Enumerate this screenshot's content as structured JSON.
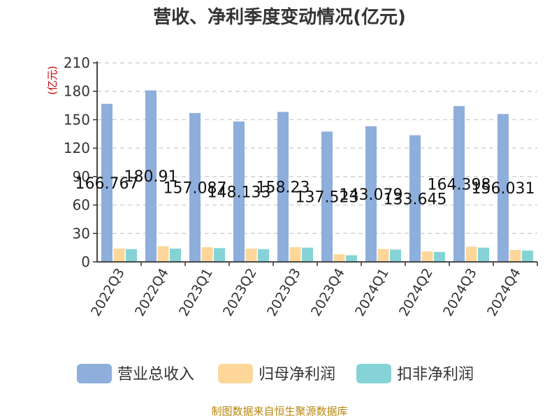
{
  "chart_data": {
    "type": "bar",
    "title": "营收、净利季度变动情况(亿元)",
    "ylabel": "(亿元)",
    "xlabel": "",
    "ylim": [
      0,
      210
    ],
    "yticks": [
      0,
      30,
      60,
      90,
      120,
      150,
      180,
      210
    ],
    "grid": true,
    "legend_position": "bottom",
    "categories": [
      "2022Q3",
      "2022Q4",
      "2023Q1",
      "2023Q2",
      "2023Q3",
      "2023Q4",
      "2024Q1",
      "2024Q2",
      "2024Q3",
      "2024Q4"
    ],
    "series": [
      {
        "name": "营业总收入",
        "color": "#8eaedb",
        "values": [
          166.767,
          180.91,
          157.087,
          148.133,
          158.23,
          137.523,
          143.079,
          133.645,
          164.398,
          156.031
        ],
        "show_labels": true
      },
      {
        "name": "归母净利润",
        "color": "#fdd799",
        "values": [
          14,
          16.5,
          15.5,
          14,
          15.5,
          8,
          13.5,
          11,
          16,
          12.5
        ],
        "show_labels": false
      },
      {
        "name": "扣非净利润",
        "color": "#85d3d6",
        "values": [
          13.5,
          14,
          14.5,
          13.5,
          15,
          7,
          13,
          10.5,
          15,
          12
        ],
        "show_labels": false
      }
    ]
  },
  "footer": "制图数据来自恒生聚源数据库"
}
